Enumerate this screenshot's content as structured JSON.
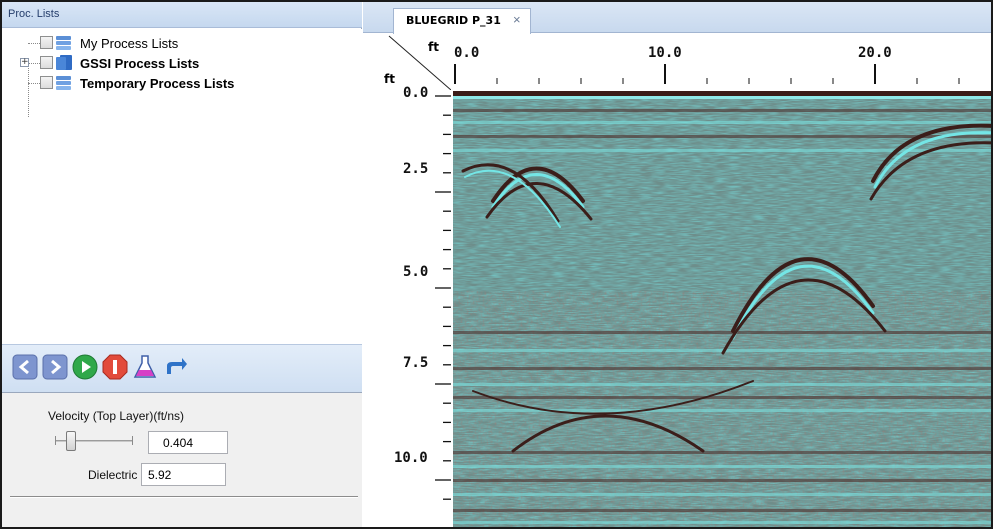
{
  "left_panel": {
    "header_title": "Proc. Lists",
    "tree_items": [
      {
        "label": "My Process Lists",
        "bold": false,
        "expandable": false
      },
      {
        "label": "GSSI Process Lists",
        "bold": true,
        "expandable": true
      },
      {
        "label": "Temporary Process Lists",
        "bold": true,
        "expandable": false
      }
    ],
    "expander_symbol": "+",
    "toolbar_icons": [
      "back-arrow-icon",
      "forward-arrow-icon",
      "play-icon",
      "stop-icon",
      "flask-icon",
      "undo-icon"
    ],
    "velocity_label": "Velocity (Top Layer)(ft/ns)",
    "velocity_value": "0.404",
    "dielectric_label": "Dielectric",
    "dielectric_value": "5.92"
  },
  "right_panel": {
    "tab_label": "BLUEGRID P_31",
    "tab_close": "×",
    "x_unit": "ft",
    "y_unit": "ft",
    "x_ticks": [
      "0.0",
      "10.0",
      "20.0"
    ],
    "y_ticks": [
      "0.0",
      "2.5",
      "5.0",
      "7.5",
      "10.0"
    ]
  },
  "colors": {
    "header_blue": "#c5d8ef",
    "radargram_teal": "#5fe0e0",
    "radargram_dark": "#5a2f2a"
  }
}
